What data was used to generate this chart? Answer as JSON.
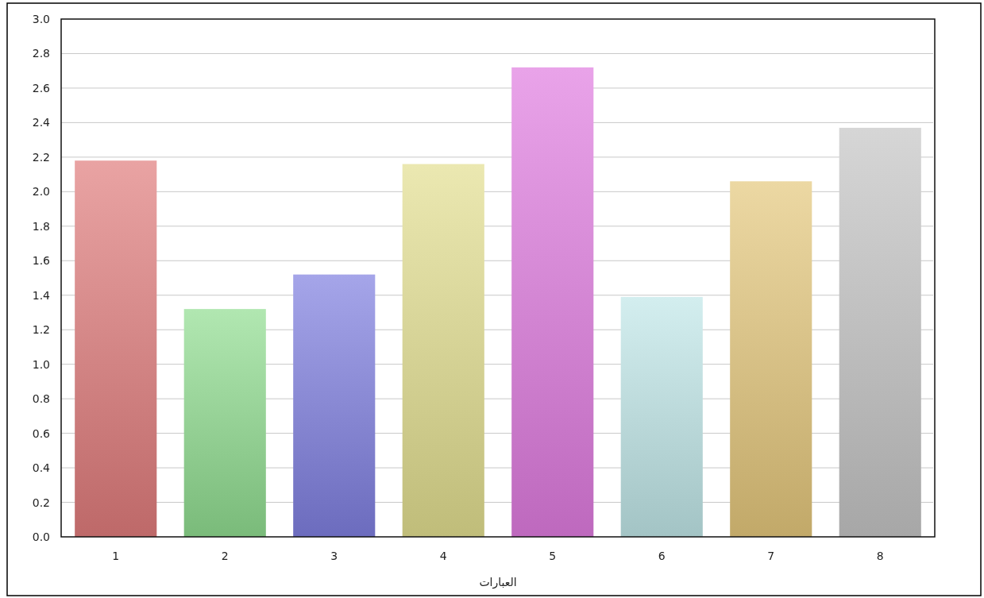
{
  "chart_data": {
    "type": "bar",
    "xlabel": "العبارات",
    "categories": [
      "1",
      "2",
      "3",
      "4",
      "5",
      "6",
      "7",
      "8"
    ],
    "values": [
      2.18,
      1.32,
      1.52,
      2.16,
      2.72,
      1.39,
      2.06,
      2.37
    ],
    "colors": [
      "#e07c7c",
      "#8fdc8f",
      "#7f7fe0",
      "#e2de90",
      "#e07ce0",
      "#c0e6e8",
      "#e4c77c",
      "#c4c4c4"
    ],
    "ylim": [
      0,
      3.0
    ],
    "yticks": [
      {
        "value": 0,
        "label": "0.0"
      },
      {
        "value": 0.2,
        "label": "0.2"
      },
      {
        "value": 0.4,
        "label": "0.4"
      },
      {
        "value": 0.6,
        "label": "0.6"
      },
      {
        "value": 0.8,
        "label": "0.8"
      },
      {
        "value": 1.0,
        "label": "1.0"
      },
      {
        "value": 1.2,
        "label": "1.2"
      },
      {
        "value": 1.4,
        "label": "1.4"
      },
      {
        "value": 1.6,
        "label": "1.6"
      },
      {
        "value": 1.8,
        "label": "1.8"
      },
      {
        "value": 2.0,
        "label": "2.0"
      },
      {
        "value": 2.2,
        "label": "2.2"
      },
      {
        "value": 2.4,
        "label": "2.4"
      },
      {
        "value": 2.6,
        "label": "2.6"
      },
      {
        "value": 2.8,
        "label": "2.8"
      },
      {
        "value": 3.0,
        "label": "3.0"
      }
    ],
    "grid": "y"
  }
}
